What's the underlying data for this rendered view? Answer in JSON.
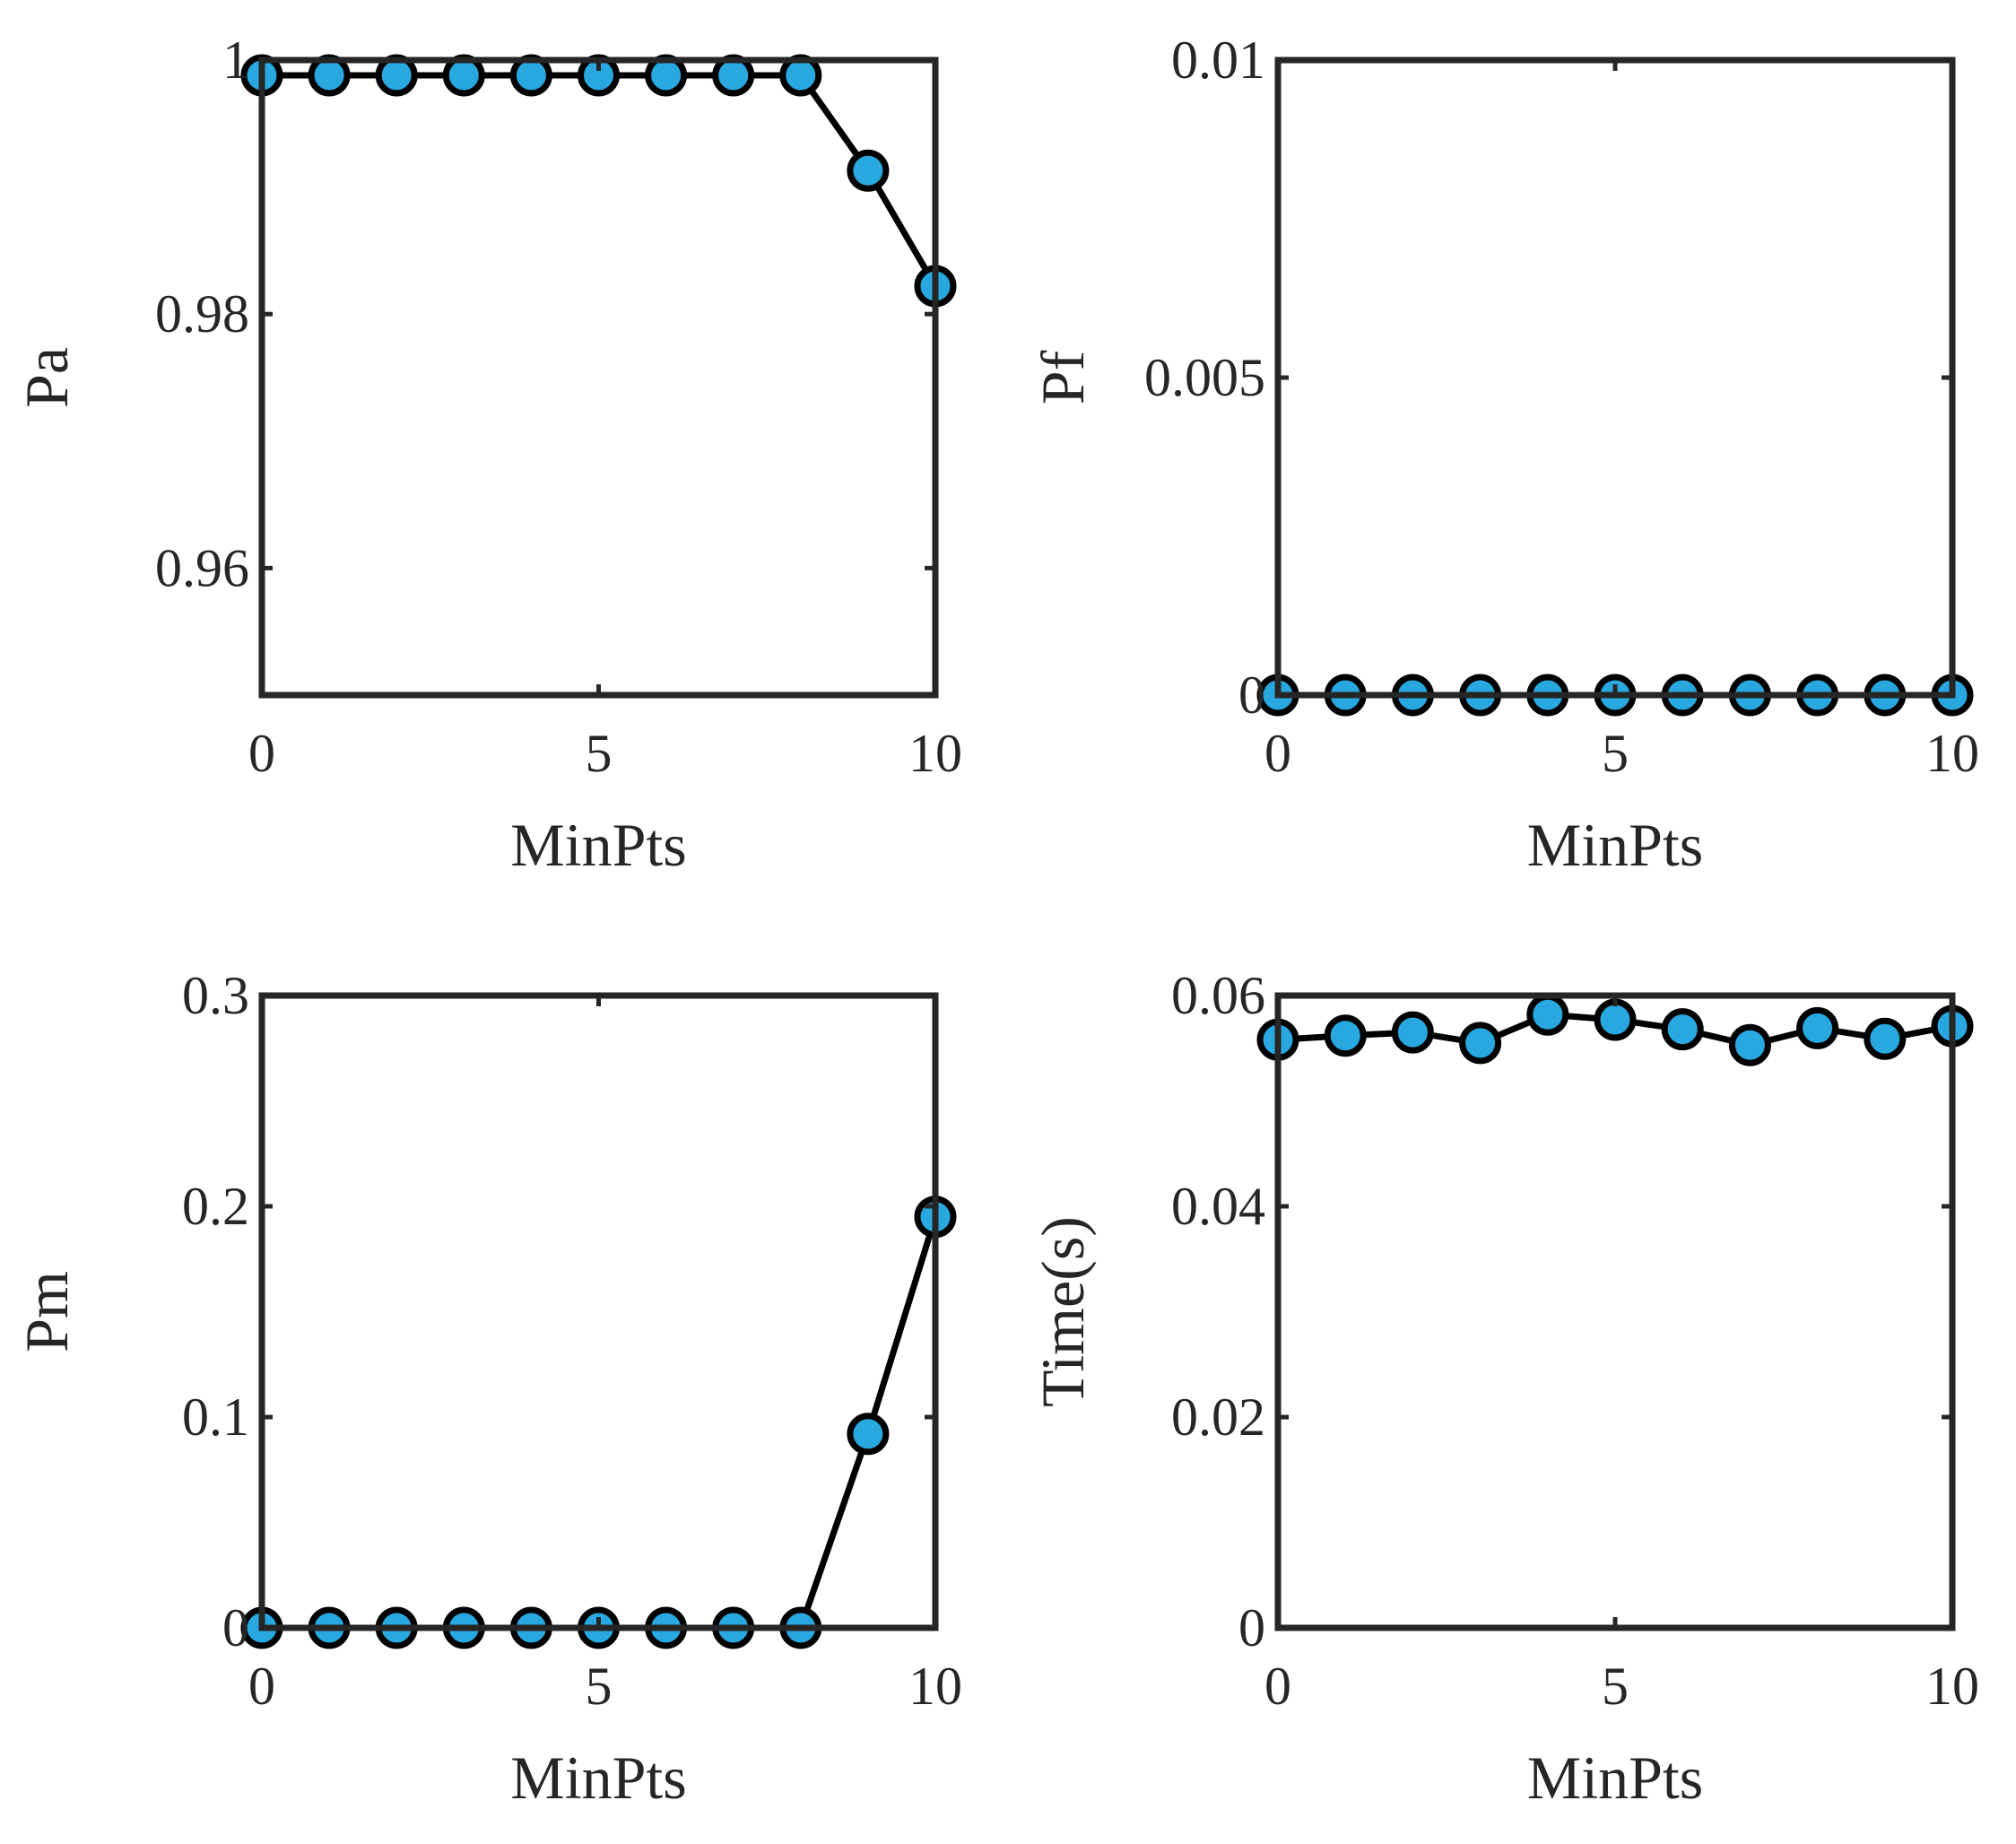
{
  "chart_data": [
    {
      "type": "line",
      "title": "",
      "xlabel": "MinPts",
      "ylabel": "Pa",
      "xlim": [
        0,
        10
      ],
      "ylim": [
        0.95,
        1
      ],
      "xticks": [
        0,
        5,
        10
      ],
      "xtick_labels": [
        "0",
        "5",
        "10"
      ],
      "yticks": [
        0.96,
        0.98,
        1
      ],
      "ytick_labels": [
        "0.96",
        "0.98",
        "1"
      ],
      "grid": false,
      "legend": "none",
      "series": [
        {
          "color": "#29a8e0",
          "x": [
            0,
            1,
            2,
            3,
            4,
            5,
            6,
            7,
            8,
            9,
            10
          ],
          "y": [
            0.9988,
            0.9988,
            0.9988,
            0.9988,
            0.9988,
            0.9988,
            0.9988,
            0.9988,
            0.9988,
            0.9913,
            0.9822
          ]
        }
      ]
    },
    {
      "type": "line",
      "title": "",
      "xlabel": "MinPts",
      "ylabel": "Pf",
      "xlim": [
        0,
        10
      ],
      "ylim": [
        0,
        0.01
      ],
      "xticks": [
        0,
        5,
        10
      ],
      "xtick_labels": [
        "0",
        "5",
        "10"
      ],
      "yticks": [
        0,
        0.005,
        0.01
      ],
      "ytick_labels": [
        "0",
        "0.005",
        "0.01"
      ],
      "grid": false,
      "legend": "none",
      "series": [
        {
          "color": "#29a8e0",
          "x": [
            0,
            1,
            2,
            3,
            4,
            5,
            6,
            7,
            8,
            9,
            10
          ],
          "y": [
            0,
            0,
            0,
            0,
            0,
            0,
            0,
            0,
            0,
            0,
            0
          ]
        }
      ]
    },
    {
      "type": "line",
      "title": "",
      "xlabel": "MinPts",
      "ylabel": "Pm",
      "xlim": [
        0,
        10
      ],
      "ylim": [
        0,
        0.3
      ],
      "xticks": [
        0,
        5,
        10
      ],
      "xtick_labels": [
        "0",
        "5",
        "10"
      ],
      "yticks": [
        0,
        0.1,
        0.2,
        0.3
      ],
      "ytick_labels": [
        "0",
        "0.1",
        "0.2",
        "0.3"
      ],
      "grid": false,
      "legend": "none",
      "series": [
        {
          "color": "#29a8e0",
          "x": [
            0,
            1,
            2,
            3,
            4,
            5,
            6,
            7,
            8,
            9,
            10
          ],
          "y": [
            0,
            0,
            0,
            0,
            0,
            0,
            0,
            0,
            0,
            0.092,
            0.195
          ]
        }
      ]
    },
    {
      "type": "line",
      "title": "",
      "xlabel": "MinPts",
      "ylabel": "Time(s)",
      "xlim": [
        0,
        10
      ],
      "ylim": [
        0,
        0.06
      ],
      "xticks": [
        0,
        5,
        10
      ],
      "xtick_labels": [
        "0",
        "5",
        "10"
      ],
      "yticks": [
        0,
        0.02,
        0.04,
        0.06
      ],
      "ytick_labels": [
        "0",
        "0.02",
        "0.04",
        "0.06"
      ],
      "grid": false,
      "legend": "none",
      "series": [
        {
          "color": "#29a8e0",
          "x": [
            0,
            1,
            2,
            3,
            4,
            5,
            6,
            7,
            8,
            9,
            10
          ],
          "y": [
            0.0558,
            0.0562,
            0.0565,
            0.0555,
            0.0582,
            0.0577,
            0.0568,
            0.0553,
            0.0569,
            0.0559,
            0.0571
          ]
        }
      ]
    }
  ]
}
